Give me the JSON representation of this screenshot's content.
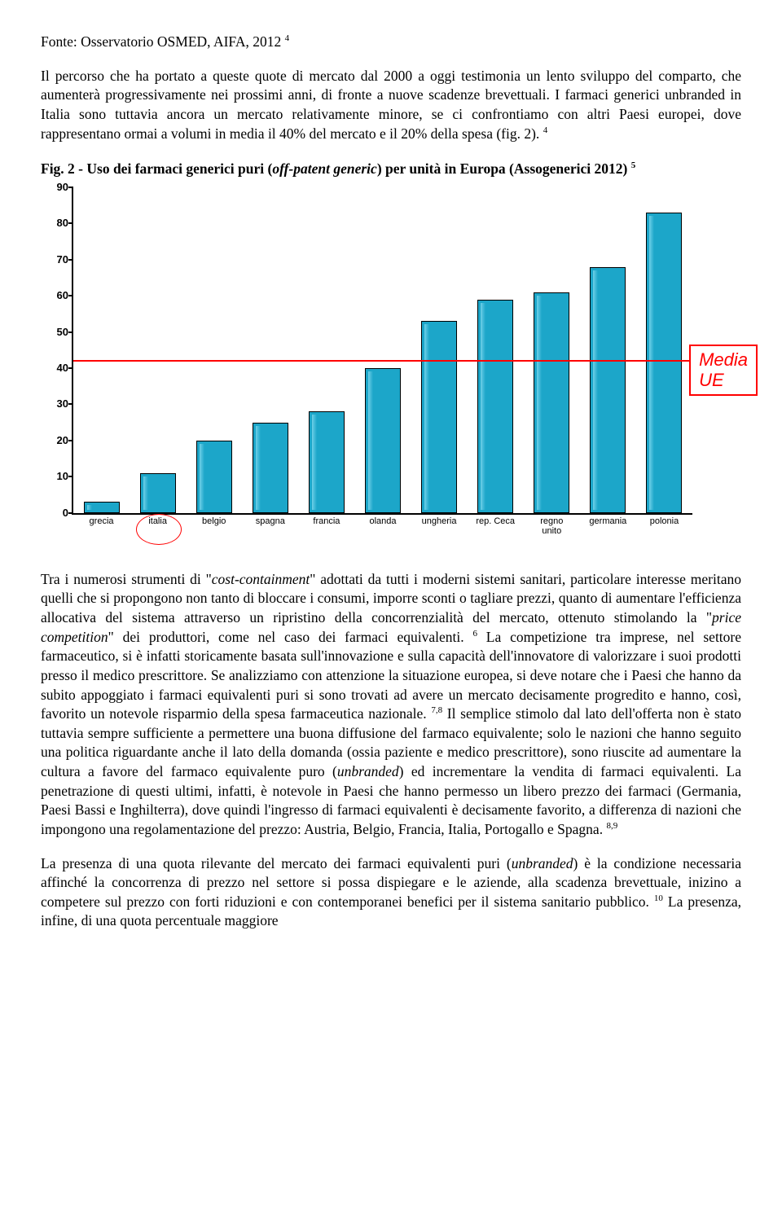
{
  "source_line": "Fonte: Osservatorio OSMED, AIFA, 2012",
  "source_sup": "4",
  "para1": "Il percorso che ha portato a queste quote di mercato dal 2000 a oggi testimonia un lento sviluppo del comparto, che aumenterà progressivamente nei prossimi anni, di fronte a nuove scadenze brevettuali. I farmaci generici unbranded in Italia sono tuttavia ancora un mercato relativamente minore, se ci confrontiamo con altri Paesi europei, dove rappresentano ormai a volumi in media il 40% del mercato e il 20% della spesa (fig. 2).",
  "para1_sup": "4",
  "fig_title_a": "Fig. 2 - Uso dei farmaci generici puri (",
  "fig_title_italic": "off-patent generic",
  "fig_title_b": ") per unità in Europa (Assogenerici 2012)",
  "fig_title_sup": "5",
  "chart": {
    "ymax": 90,
    "ytick_step": 10,
    "bar_color": "#1ca6c9",
    "bar_border": "#000000",
    "ref_value": 42,
    "ref_label": "Media\nUE",
    "ref_color": "#ff0000",
    "circle_index": 1,
    "categories": [
      "grecia",
      "italia",
      "belgio",
      "spagna",
      "francia",
      "olanda",
      "ungheria",
      "rep. Ceca",
      "regno\nunito",
      "germania",
      "polonia"
    ],
    "values": [
      3,
      11,
      20,
      25,
      28,
      40,
      53,
      59,
      61,
      68,
      83
    ],
    "label_fontsize": 11,
    "y_fontsize": 13
  },
  "para2_a": "Tra i numerosi strumenti di \"",
  "para2_i1": "cost-containment",
  "para2_b": "\" adottati da tutti i moderni sistemi sanitari, particolare interesse meritano quelli che si propongono non tanto di bloccare i consumi, imporre sconti o tagliare prezzi, quanto di aumentare l'efficienza allocativa del sistema attraverso un ripristino della concorrenzialità del mercato, ottenuto stimolando la \"",
  "para2_i2": "price competition",
  "para2_c": "\" dei produttori, come nel caso dei farmaci equivalenti.",
  "para2_sup1": "6",
  "para2_d": " La competizione tra imprese, nel settore farmaceutico, si è infatti storicamente basata sull'innovazione e sulla capacità dell'innovatore di valorizzare i suoi prodotti presso il medico prescrittore. Se analizziamo con attenzione la situazione europea, si deve notare che i Paesi che hanno da subito appoggiato i farmaci equivalenti puri si sono trovati ad avere un mercato decisamente progredito e hanno, così, favorito un notevole risparmio della spesa farmaceutica nazionale.",
  "para2_sup2": "7,8",
  "para2_e": " Il semplice stimolo dal lato dell'offerta non è stato tuttavia sempre sufficiente a permettere una buona diffusione del farmaco equivalente; solo le nazioni che hanno seguito una politica riguardante anche il lato della domanda (ossia paziente e medico prescrittore), sono riuscite ad aumentare la cultura a favore del farmaco equivalente puro (",
  "para2_i3": "unbranded",
  "para2_f": ") ed incrementare la vendita di farmaci equivalenti. La penetrazione di questi ultimi, infatti, è notevole in Paesi che hanno permesso un libero prezzo dei farmaci (Germania, Paesi Bassi e Inghilterra), dove quindi l'ingresso di farmaci equivalenti è decisamente favorito, a differenza di nazioni che impongono una regolamentazione del prezzo: Austria, Belgio, Francia, Italia, Portogallo e Spagna.",
  "para2_sup3": "8,9",
  "para3_a": "La presenza di una quota rilevante del mercato dei farmaci equivalenti puri (",
  "para3_i1": "unbranded",
  "para3_b": ") è la condizione necessaria affinché la concorrenza di prezzo nel settore si possa dispiegare e le aziende, alla scadenza brevettuale, inizino a competere sul prezzo con forti riduzioni e con contemporanei benefici per il sistema sanitario pubblico.",
  "para3_sup": "10",
  "para3_c": " La presenza, infine, di una quota percentuale maggiore"
}
